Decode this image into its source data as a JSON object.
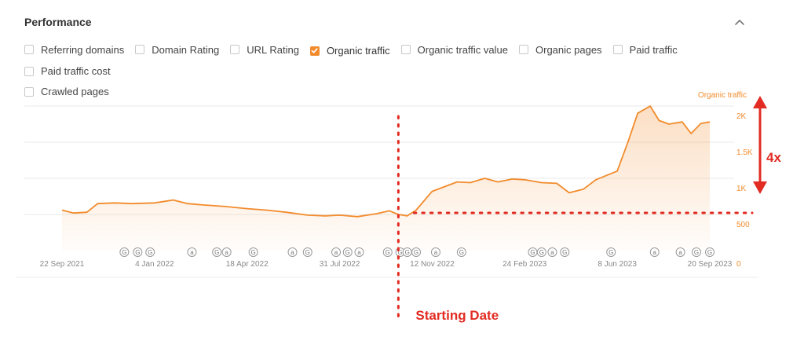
{
  "panel": {
    "title": "Performance",
    "collapse_icon": "chevron-up-icon"
  },
  "metrics": [
    {
      "label": "Referring domains",
      "checked": false
    },
    {
      "label": "Domain Rating",
      "checked": false
    },
    {
      "label": "URL Rating",
      "checked": false
    },
    {
      "label": "Organic traffic",
      "checked": true
    },
    {
      "label": "Organic traffic value",
      "checked": false
    },
    {
      "label": "Organic pages",
      "checked": false
    },
    {
      "label": "Paid traffic",
      "checked": false
    },
    {
      "label": "Paid traffic cost",
      "checked": false
    },
    {
      "label": "Crawled pages",
      "checked": false
    }
  ],
  "colors": {
    "accent": "#f28b2c",
    "annotation": "#e22b22",
    "grid": "#e9e9e9"
  },
  "chart_data": {
    "type": "area",
    "series": [
      {
        "name": "Organic traffic",
        "points": [
          [
            "2021-09-22",
            560
          ],
          [
            "2021-10-05",
            520
          ],
          [
            "2021-10-20",
            530
          ],
          [
            "2021-11-01",
            650
          ],
          [
            "2021-11-20",
            660
          ],
          [
            "2021-12-10",
            650
          ],
          [
            "2022-01-04",
            660
          ],
          [
            "2022-01-25",
            700
          ],
          [
            "2022-02-10",
            650
          ],
          [
            "2022-03-01",
            630
          ],
          [
            "2022-03-25",
            610
          ],
          [
            "2022-04-18",
            580
          ],
          [
            "2022-05-10",
            560
          ],
          [
            "2022-06-01",
            530
          ],
          [
            "2022-06-25",
            490
          ],
          [
            "2022-07-15",
            480
          ],
          [
            "2022-07-31",
            490
          ],
          [
            "2022-08-20",
            470
          ],
          [
            "2022-09-10",
            510
          ],
          [
            "2022-09-25",
            550
          ],
          [
            "2022-10-05",
            500
          ],
          [
            "2022-10-15",
            480
          ],
          [
            "2022-10-25",
            560
          ],
          [
            "2022-11-05",
            720
          ],
          [
            "2022-11-12",
            820
          ],
          [
            "2022-11-25",
            880
          ],
          [
            "2022-12-10",
            950
          ],
          [
            "2022-12-25",
            940
          ],
          [
            "2023-01-10",
            1000
          ],
          [
            "2023-01-25",
            950
          ],
          [
            "2023-02-10",
            990
          ],
          [
            "2023-02-24",
            980
          ],
          [
            "2023-03-15",
            940
          ],
          [
            "2023-04-01",
            930
          ],
          [
            "2023-04-15",
            800
          ],
          [
            "2023-05-01",
            850
          ],
          [
            "2023-05-15",
            980
          ],
          [
            "2023-06-08",
            1100
          ],
          [
            "2023-06-20",
            1500
          ],
          [
            "2023-07-01",
            1900
          ],
          [
            "2023-07-15",
            2000
          ],
          [
            "2023-07-25",
            1800
          ],
          [
            "2023-08-05",
            1750
          ],
          [
            "2023-08-20",
            1780
          ],
          [
            "2023-08-30",
            1620
          ],
          [
            "2023-09-10",
            1760
          ],
          [
            "2023-09-20",
            1780
          ]
        ]
      }
    ],
    "x_ticks": [
      "22 Sep 2021",
      "4 Jan 2022",
      "18 Apr 2022",
      "31 Jul 2022",
      "12 Nov 2022",
      "24 Feb 2023",
      "8 Jun 2023",
      "20 Sep 2023"
    ],
    "y_ticks": [
      {
        "value": 0,
        "label": "0"
      },
      {
        "value": 500,
        "label": "500"
      },
      {
        "value": 1000,
        "label": "1K"
      },
      {
        "value": 1500,
        "label": "1.5K"
      },
      {
        "value": 2000,
        "label": "2K"
      }
    ],
    "ylim": [
      0,
      2000
    ],
    "xlim": [
      "2021-09-22",
      "2023-09-20"
    ],
    "grid": true,
    "series_label": "Organic traffic",
    "legend": "top-right",
    "events": [
      {
        "date": "2021-12-01",
        "type": "G"
      },
      {
        "date": "2021-12-16",
        "type": "G"
      },
      {
        "date": "2021-12-30",
        "type": "G"
      },
      {
        "date": "2022-02-15",
        "type": "a"
      },
      {
        "date": "2022-03-15",
        "type": "G"
      },
      {
        "date": "2022-03-26",
        "type": "a"
      },
      {
        "date": "2022-04-25",
        "type": "G"
      },
      {
        "date": "2022-06-08",
        "type": "a"
      },
      {
        "date": "2022-06-25",
        "type": "G"
      },
      {
        "date": "2022-07-27",
        "type": "a"
      },
      {
        "date": "2022-08-09",
        "type": "G"
      },
      {
        "date": "2022-08-22",
        "type": "a"
      },
      {
        "date": "2022-09-23",
        "type": "G"
      },
      {
        "date": "2022-10-07",
        "type": "G"
      },
      {
        "date": "2022-10-15",
        "type": "G"
      },
      {
        "date": "2022-10-25",
        "type": "G"
      },
      {
        "date": "2022-11-16",
        "type": "a"
      },
      {
        "date": "2022-12-15",
        "type": "G"
      },
      {
        "date": "2023-03-05",
        "type": "G"
      },
      {
        "date": "2023-03-15",
        "type": "G"
      },
      {
        "date": "2023-03-27",
        "type": "a"
      },
      {
        "date": "2023-04-10",
        "type": "G"
      },
      {
        "date": "2023-06-01",
        "type": "G"
      },
      {
        "date": "2023-07-20",
        "type": "a"
      },
      {
        "date": "2023-08-18",
        "type": "a"
      },
      {
        "date": "2023-09-05",
        "type": "G"
      },
      {
        "date": "2023-09-20",
        "type": "G"
      }
    ]
  },
  "annotations": {
    "starting_label": "Starting Date",
    "starting_date": "2022-10-05",
    "growth_label": "4x",
    "baseline_value": 500,
    "peak_value": 2000
  }
}
